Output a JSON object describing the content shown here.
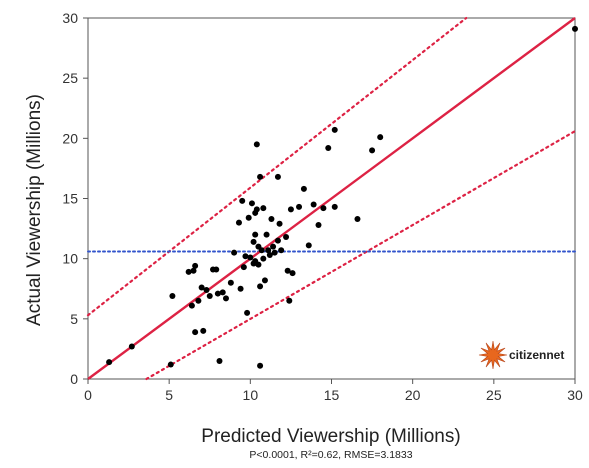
{
  "chart_data": {
    "type": "scatter",
    "xlabel": "Predicted Viewership (Millions)",
    "ylabel": "Actual Viewership (Millions)",
    "xlim": [
      0,
      30
    ],
    "ylim": [
      0,
      30
    ],
    "xticks": [
      0,
      5,
      10,
      15,
      20,
      25,
      30
    ],
    "yticks": [
      0,
      5,
      10,
      15,
      20,
      25,
      30
    ],
    "footnote": "P<0.0001, R²=0.62, RMSE=3.1833",
    "mean_line": {
      "y": 10.6,
      "color": "#3355cc",
      "style": "dotted"
    },
    "fit_line": {
      "x": [
        0,
        30
      ],
      "y": [
        0,
        30
      ],
      "color": "#dd2244"
    },
    "confidence_bands": [
      {
        "x": [
          0,
          23.3
        ],
        "y": [
          5.3,
          30
        ],
        "color": "#dd2244",
        "style": "dotted"
      },
      {
        "x": [
          3.6,
          30
        ],
        "y": [
          0,
          20.6
        ],
        "color": "#dd2244",
        "style": "dotted"
      }
    ],
    "points": [
      [
        1.3,
        1.4
      ],
      [
        2.7,
        2.7
      ],
      [
        5.1,
        1.2
      ],
      [
        5.2,
        6.9
      ],
      [
        6.2,
        8.9
      ],
      [
        6.4,
        6.1
      ],
      [
        6.5,
        9.0
      ],
      [
        6.6,
        9.4
      ],
      [
        6.6,
        3.9
      ],
      [
        6.8,
        6.5
      ],
      [
        7.0,
        7.6
      ],
      [
        7.1,
        4.0
      ],
      [
        7.3,
        7.4
      ],
      [
        7.5,
        6.9
      ],
      [
        7.7,
        9.1
      ],
      [
        7.9,
        9.1
      ],
      [
        8.0,
        7.1
      ],
      [
        8.1,
        1.5
      ],
      [
        8.3,
        7.2
      ],
      [
        8.5,
        6.7
      ],
      [
        8.8,
        8.0
      ],
      [
        9.0,
        10.5
      ],
      [
        9.3,
        13.0
      ],
      [
        9.4,
        7.5
      ],
      [
        9.5,
        14.8
      ],
      [
        9.6,
        9.3
      ],
      [
        9.7,
        10.2
      ],
      [
        9.8,
        5.5
      ],
      [
        9.9,
        13.4
      ],
      [
        10.0,
        10.1
      ],
      [
        10.1,
        14.6
      ],
      [
        10.2,
        9.6
      ],
      [
        10.2,
        11.4
      ],
      [
        10.3,
        9.8
      ],
      [
        10.3,
        12.0
      ],
      [
        10.3,
        13.8
      ],
      [
        10.4,
        19.5
      ],
      [
        10.4,
        14.1
      ],
      [
        10.5,
        11.0
      ],
      [
        10.5,
        9.5
      ],
      [
        10.6,
        16.8
      ],
      [
        10.6,
        1.1
      ],
      [
        10.6,
        7.7
      ],
      [
        10.7,
        10.7
      ],
      [
        10.8,
        14.2
      ],
      [
        10.8,
        10.0
      ],
      [
        10.9,
        8.2
      ],
      [
        11.0,
        12.0
      ],
      [
        11.1,
        10.7
      ],
      [
        11.2,
        10.3
      ],
      [
        11.3,
        13.3
      ],
      [
        11.4,
        11.0
      ],
      [
        11.5,
        10.5
      ],
      [
        11.7,
        16.8
      ],
      [
        11.7,
        11.5
      ],
      [
        11.8,
        12.9
      ],
      [
        11.9,
        10.7
      ],
      [
        12.2,
        11.8
      ],
      [
        12.3,
        9.0
      ],
      [
        12.4,
        6.5
      ],
      [
        12.5,
        14.1
      ],
      [
        12.6,
        8.8
      ],
      [
        13.0,
        14.3
      ],
      [
        13.3,
        15.8
      ],
      [
        13.6,
        11.1
      ],
      [
        13.9,
        14.5
      ],
      [
        14.2,
        12.8
      ],
      [
        14.5,
        14.2
      ],
      [
        14.8,
        19.2
      ],
      [
        15.2,
        20.7
      ],
      [
        15.2,
        14.3
      ],
      [
        16.6,
        13.3
      ],
      [
        17.5,
        19.0
      ],
      [
        18.0,
        20.1
      ],
      [
        30.0,
        29.1
      ]
    ]
  },
  "logo": {
    "text": "citizennet",
    "color": "#e8671e"
  }
}
